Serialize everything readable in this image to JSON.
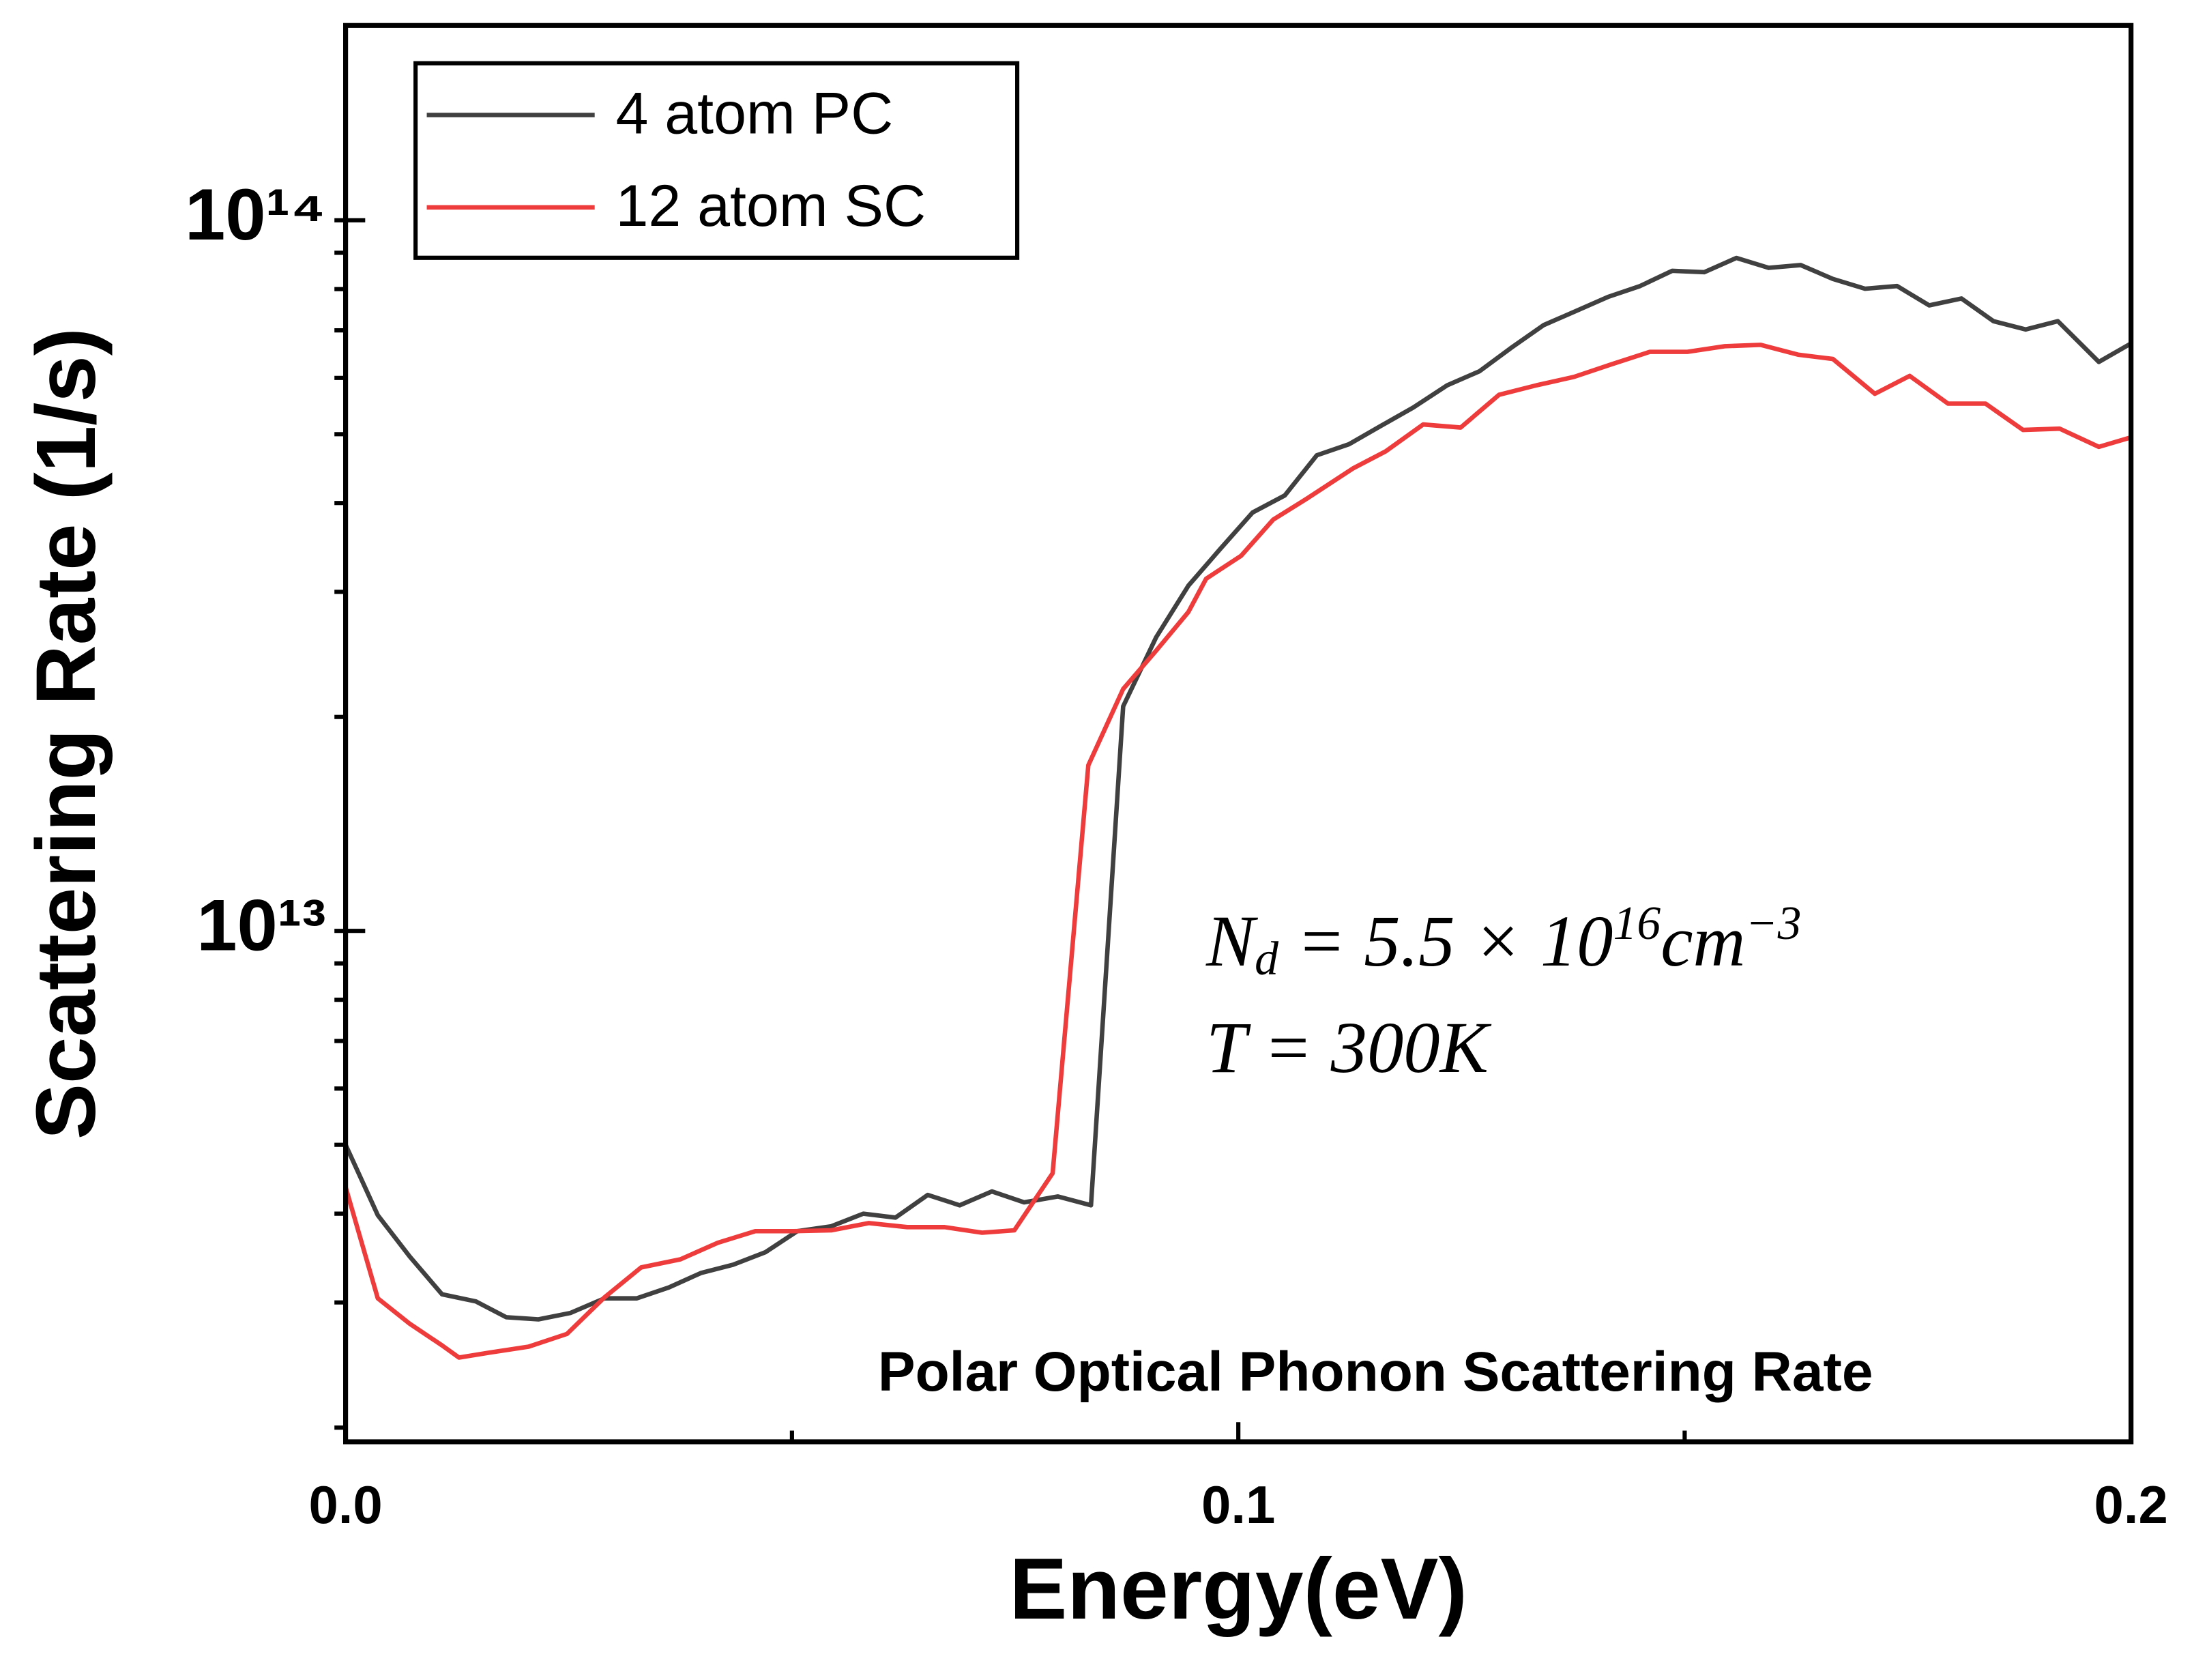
{
  "chart_data": {
    "type": "line",
    "title": "Polar Optical Phonon Scattering Rate",
    "x_label": "Energy(eV)",
    "y_label": "Scattering Rate (1/s)",
    "xlim": [
      0,
      0.2
    ],
    "xticks": [
      {
        "value": 0,
        "label": "0.0"
      },
      0.1,
      0.2
    ],
    "xminorticks": [
      0.05,
      0.15
    ],
    "ylim": [
      1910000000000.0,
      188000000000000.0
    ],
    "y_log": true,
    "yticks": [
      {
        "value": 10000000000000.0,
        "label": "10¹³"
      },
      {
        "value": 100000000000000.0,
        "label": "10¹⁴"
      }
    ],
    "yminorticks": [
      2000000000000.0,
      3000000000000.0,
      4000000000000.0,
      5000000000000.0,
      6000000000000.0,
      7000000000000.0,
      8000000000000.0,
      9000000000000.0,
      20000000000000.0,
      30000000000000.0,
      40000000000000.0,
      50000000000000.0,
      60000000000000.0,
      70000000000000.0,
      80000000000000.0,
      90000000000000.0
    ],
    "legend": "upper left",
    "annotation_lines": [
      [
        {
          "text": "N",
          "pos": "normal"
        },
        {
          "text": "d",
          "pos": "sub"
        },
        {
          "text": " = 5.5 × 10",
          "pos": "normal"
        },
        {
          "text": "16",
          "pos": "sup"
        },
        {
          "text": "cm",
          "pos": "normal"
        },
        {
          "text": "−3",
          "pos": "sup"
        }
      ],
      [
        {
          "text": "T = 300K",
          "pos": "normal"
        }
      ]
    ],
    "series": [
      {
        "name": "4 atom PC",
        "color": "#404040",
        "x": [
          0,
          0.0036,
          0.0072,
          0.0108,
          0.0146,
          0.018,
          0.0216,
          0.0252,
          0.029,
          0.0326,
          0.0362,
          0.0398,
          0.0434,
          0.047,
          0.0506,
          0.0544,
          0.058,
          0.0616,
          0.0652,
          0.0688,
          0.0724,
          0.076,
          0.0798,
          0.0835,
          0.0871,
          0.0908,
          0.0944,
          0.098,
          0.1016,
          0.1052,
          0.1088,
          0.1124,
          0.116,
          0.1196,
          0.1234,
          0.127,
          0.1306,
          0.1342,
          0.1378,
          0.1414,
          0.145,
          0.1486,
          0.1522,
          0.1558,
          0.1594,
          0.163,
          0.1666,
          0.1702,
          0.1738,
          0.1774,
          0.181,
          0.1846,
          0.1882,
          0.1918,
          0.1964,
          0.2
        ],
        "values": [
          5000000000000.0,
          3980000000000.0,
          3480000000000.0,
          3080000000000.0,
          3010000000000.0,
          2860000000000.0,
          2840000000000.0,
          2900000000000.0,
          3040000000000.0,
          3040000000000.0,
          3150000000000.0,
          3300000000000.0,
          3390000000000.0,
          3530000000000.0,
          3780000000000.0,
          3840000000000.0,
          4000000000000.0,
          3950000000000.0,
          4250000000000.0,
          4110000000000.0,
          4300000000000.0,
          4150000000000.0,
          4230000000000.0,
          4110000000000.0,
          20700000000000.0,
          25900000000000.0,
          30600000000000.0,
          34500000000000.0,
          38800000000000.0,
          41000000000000.0,
          46700000000000.0,
          48400000000000.0,
          51400000000000.0,
          54500000000000.0,
          58600000000000.0,
          61300000000000.0,
          66200000000000.0,
          71200000000000.0,
          74500000000000.0,
          78000000000000.0,
          80800000000000.0,
          84900000000000.0,
          84500000000000.0,
          88500000000000.0,
          85700000000000.0,
          86500000000000.0,
          82700000000000.0,
          80100000000000.0,
          80800000000000.0,
          75900000000000.0,
          77600000000000.0,
          72100000000000.0,
          70200000000000.0,
          72100000000000.0,
          63200000000000.0,
          67100000000000.0
        ]
      },
      {
        "name": "12 atom SC",
        "color": "#ee3b3b",
        "x": [
          0,
          0.0036,
          0.0072,
          0.0108,
          0.0127,
          0.0161,
          0.0205,
          0.0248,
          0.029,
          0.0331,
          0.0375,
          0.0417,
          0.0459,
          0.0502,
          0.0544,
          0.0586,
          0.0629,
          0.0671,
          0.0713,
          0.0749,
          0.0792,
          0.0832,
          0.0871,
          0.0908,
          0.0944,
          0.0964,
          0.1003,
          0.1039,
          0.1077,
          0.1129,
          0.1165,
          0.1207,
          0.1249,
          0.1292,
          0.1334,
          0.1376,
          0.1418,
          0.1461,
          0.1503,
          0.1545,
          0.1585,
          0.1627,
          0.1666,
          0.1713,
          0.1752,
          0.1795,
          0.1837,
          0.1879,
          0.192,
          0.1964,
          0.2
        ],
        "values": [
          4360000000000.0,
          3040000000000.0,
          2800000000000.0,
          2610000000000.0,
          2510000000000.0,
          2550000000000.0,
          2600000000000.0,
          2710000000000.0,
          3050000000000.0,
          3360000000000.0,
          3450000000000.0,
          3640000000000.0,
          3780000000000.0,
          3780000000000.0,
          3790000000000.0,
          3880000000000.0,
          3830000000000.0,
          3830000000000.0,
          3760000000000.0,
          3790000000000.0,
          4560000000000.0,
          17100000000000.0,
          21900000000000.0,
          24800000000000.0,
          28100000000000.0,
          31300000000000.0,
          33700000000000.0,
          37900000000000.0,
          40600000000000.0,
          44800000000000.0,
          47300000000000.0,
          51600000000000.0,
          51100000000000.0,
          56800000000000.0,
          58600000000000.0,
          60200000000000.0,
          62700000000000.0,
          65300000000000.0,
          65300000000000.0,
          66500000000000.0,
          66800000000000.0,
          64700000000000.0,
          63800000000000.0,
          57000000000000.0,
          60400000000000.0,
          55200000000000.0,
          55200000000000.0,
          50700000000000.0,
          50900000000000.0,
          48000000000000.0,
          49500000000000.0
        ]
      }
    ]
  }
}
